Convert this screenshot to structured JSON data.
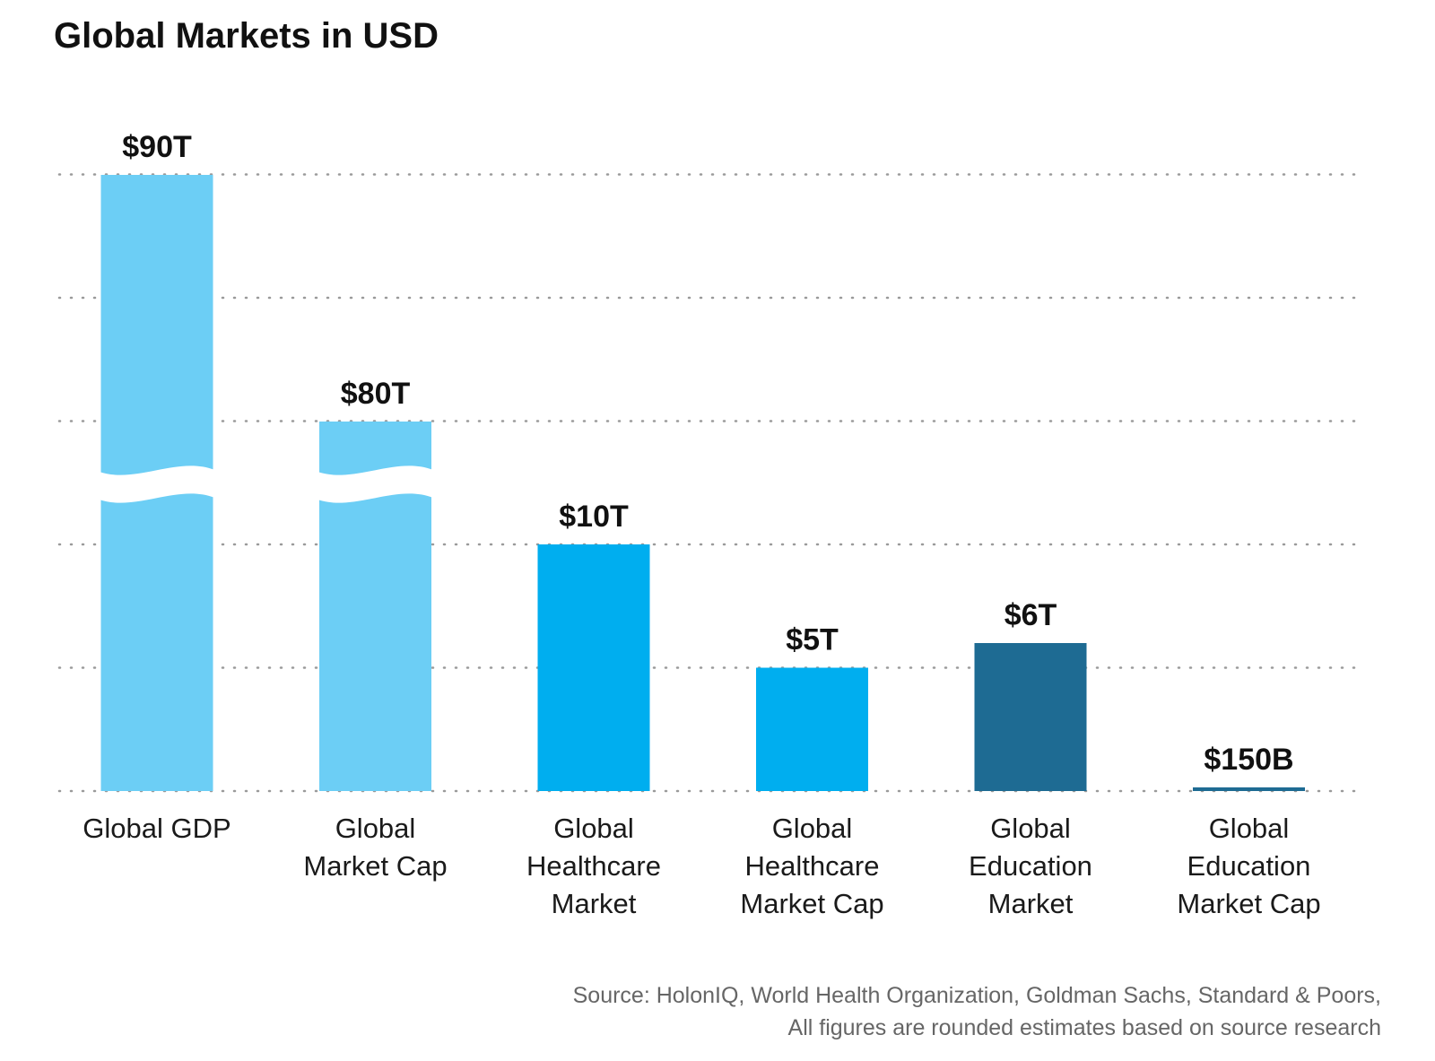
{
  "title": "Global Markets in USD",
  "chart_data": {
    "type": "bar",
    "title": "Global Markets in USD",
    "categories": [
      [
        "Global GDP"
      ],
      [
        "Global",
        "Market Cap"
      ],
      [
        "Global",
        "Healthcare",
        "Market"
      ],
      [
        "Global",
        "Healthcare",
        "Market Cap"
      ],
      [
        "Global",
        "Education",
        "Market"
      ],
      [
        "Global",
        "Education",
        "Market Cap"
      ]
    ],
    "values": [
      90000,
      80000,
      10000,
      5000,
      6000,
      150
    ],
    "units": "billion USD",
    "value_labels": [
      "$90T",
      "$80T",
      "$10T",
      "$5T",
      "$6T",
      "$150B"
    ],
    "axis_break": true,
    "broken_bars": [
      0,
      1
    ],
    "bar_colors": [
      "#6ccef5",
      "#6ccef5",
      "#00aeef",
      "#00aeef",
      "#1e6b93",
      "#1e6b93"
    ],
    "gridlines": true,
    "gridline_style": "dotted",
    "xlabel": "",
    "ylabel": "",
    "y_tick_labels": "none"
  },
  "source": {
    "line1": "Source: HolonIQ, World Health Organization, Goldman Sachs, Standard & Poors,",
    "line2": "All figures are rounded estimates based on source research"
  }
}
